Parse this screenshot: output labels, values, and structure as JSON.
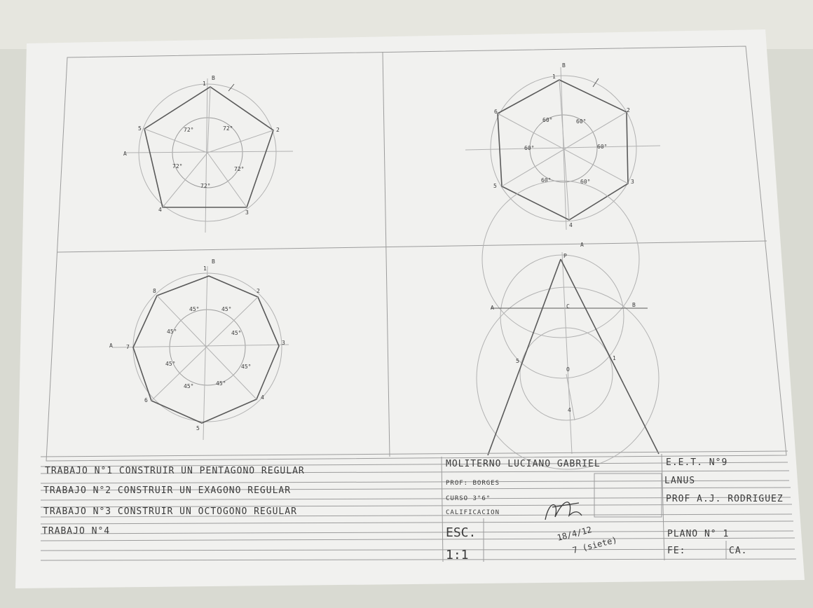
{
  "sheet": {
    "pentagon": {
      "vertex_labels": [
        "1",
        "2",
        "3",
        "4",
        "5"
      ],
      "axis_labels": [
        "A",
        "B"
      ],
      "angle_labels": [
        "72°",
        "72°",
        "72°",
        "72°",
        "72°"
      ]
    },
    "hexagon": {
      "vertex_labels": [
        "1",
        "2",
        "3",
        "4",
        "5",
        "6"
      ],
      "axis_labels": [
        "B"
      ],
      "angle_labels": [
        "60°",
        "60°",
        "60°",
        "60°",
        "60°",
        "60°"
      ]
    },
    "octagon": {
      "vertex_labels": [
        "1",
        "2",
        "3",
        "4",
        "5",
        "6",
        "7",
        "8"
      ],
      "axis_labels": [
        "A",
        "B"
      ],
      "angle_labels": [
        "45°",
        "45°",
        "45°",
        "45°",
        "45°",
        "45°",
        "45°",
        "45°"
      ]
    },
    "triangle": {
      "labels": {
        "apex": "P",
        "apex_arc": "A",
        "left": "A",
        "center": "C",
        "right": "B",
        "circle_center": "O",
        "tangent_left": "5",
        "tangent_right": "1",
        "radius_mark": "4"
      }
    },
    "title_block": {
      "works": [
        "TRABAJO N°1 CONSTRUIR UN PENTAGONO REGULAR",
        "TRABAJO N°2 CONSTRUIR UN EXAGONO REGULAR",
        "TRABAJO N°3 CONSTRUIR UN OCTOGONO REGULAR",
        "TRABAJO N°4"
      ],
      "student": "MOLITERNO LUCIANO GABRIEL",
      "professor": "PROF: BORGES",
      "course": "CURSO 3°6°",
      "grade_label": "CALIFICACION",
      "scale_label": "ESC.",
      "scale_value": "1:1",
      "school": "E.E.T. N°9",
      "city": "LANUS",
      "school_professor": "PROF A.J. RODRIGUEZ",
      "plan_label": "PLANO N° 1",
      "date_label": "FE:",
      "date_value": "CA.",
      "signature_date": "18/4/12",
      "grade_note": "7 (siete)"
    }
  }
}
